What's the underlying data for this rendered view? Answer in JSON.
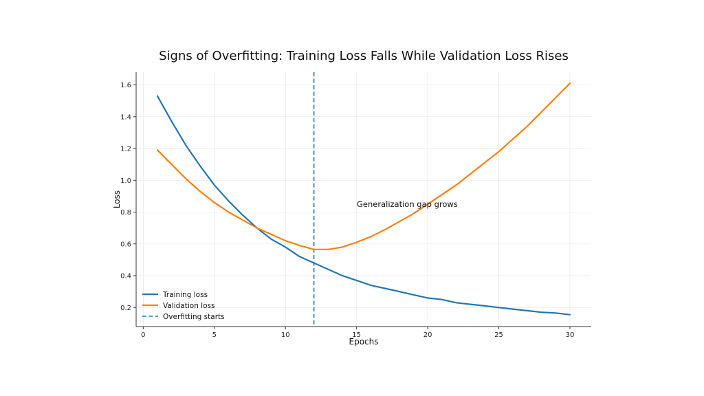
{
  "chart_data": {
    "type": "line",
    "title": "Signs of Overfitting: Training Loss Falls While Validation Loss Rises",
    "xlabel": "Epochs",
    "ylabel": "Loss",
    "xlim": [
      -0.5,
      31.5
    ],
    "ylim": [
      0.08,
      1.68
    ],
    "xticks": [
      0,
      5,
      10,
      15,
      20,
      25,
      30
    ],
    "xtick_labels": [
      "0",
      "5",
      "10",
      "15",
      "20",
      "25",
      "30"
    ],
    "yticks": [
      0.2,
      0.4,
      0.6,
      0.8,
      1.0,
      1.2,
      1.4,
      1.6
    ],
    "ytick_labels": [
      "0.2",
      "0.4",
      "0.6",
      "0.8",
      "1.0",
      "1.2",
      "1.4",
      "1.6"
    ],
    "grid": true,
    "legend_position": "lower-left",
    "x": [
      1,
      2,
      3,
      4,
      5,
      6,
      7,
      8,
      9,
      10,
      11,
      12,
      13,
      14,
      15,
      16,
      17,
      18,
      19,
      20,
      21,
      22,
      23,
      24,
      25,
      26,
      27,
      28,
      29,
      30
    ],
    "series": [
      {
        "name": "Training loss",
        "color": "#1f77b4",
        "style": "solid",
        "values": [
          1.53,
          1.37,
          1.22,
          1.09,
          0.97,
          0.87,
          0.78,
          0.7,
          0.63,
          0.58,
          0.52,
          0.48,
          0.44,
          0.4,
          0.37,
          0.34,
          0.32,
          0.3,
          0.28,
          0.26,
          0.25,
          0.23,
          0.22,
          0.21,
          0.2,
          0.19,
          0.18,
          0.17,
          0.165,
          0.155
        ]
      },
      {
        "name": "Validation loss",
        "color": "#ff7f0e",
        "style": "solid",
        "values": [
          1.19,
          1.1,
          1.01,
          0.93,
          0.86,
          0.8,
          0.75,
          0.7,
          0.66,
          0.62,
          0.59,
          0.565,
          0.565,
          0.58,
          0.61,
          0.645,
          0.69,
          0.74,
          0.79,
          0.85,
          0.91,
          0.97,
          1.04,
          1.11,
          1.18,
          1.26,
          1.34,
          1.43,
          1.52,
          1.61
        ]
      }
    ],
    "vline": {
      "name": "Overfitting starts",
      "x": 12,
      "color": "#1f77b4",
      "style": "dashed"
    },
    "annotations": [
      {
        "text": "Generalization gap grows",
        "x": 15,
        "y": 0.84
      }
    ]
  }
}
